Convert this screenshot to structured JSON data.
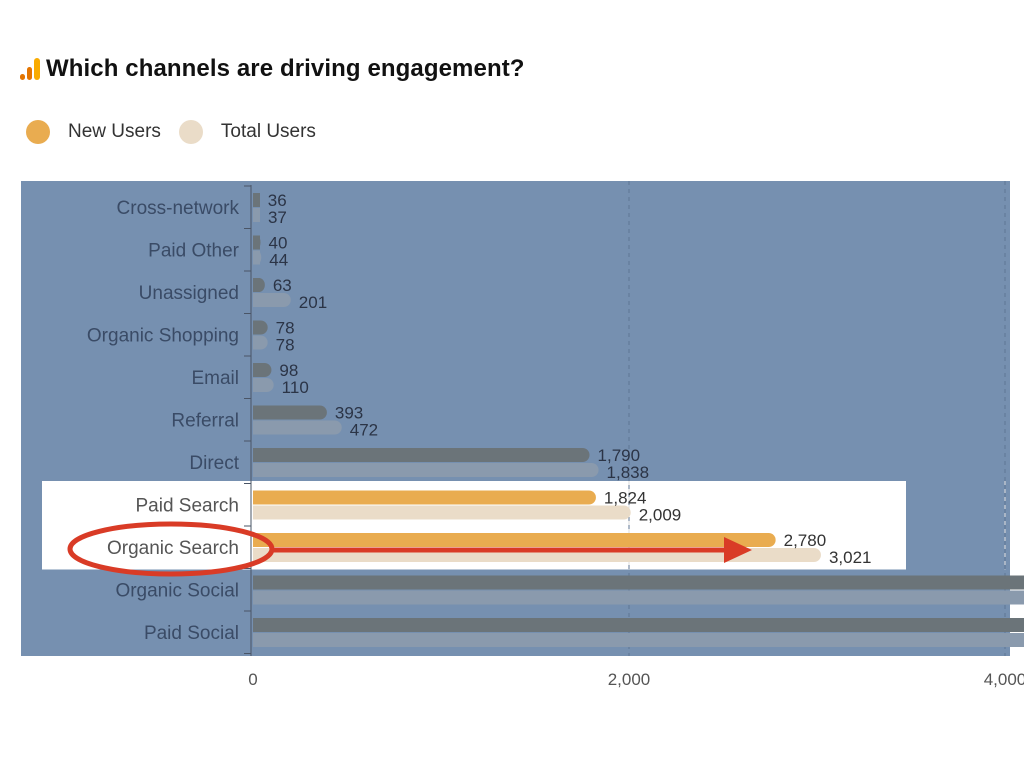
{
  "header": {
    "title": "Which channels are driving engagement?",
    "icon": "analytics-bars-icon"
  },
  "legend": {
    "items": [
      {
        "label": "New Users",
        "color": "#e9ac50"
      },
      {
        "label": "Total Users",
        "color": "#eadcc8"
      }
    ]
  },
  "colors": {
    "overlay": "#7690b0",
    "dimmed_new": "#6b7479",
    "dimmed_total": "#8a9aad",
    "highlight_bg": "#ffffff",
    "annotation": "#d93b26",
    "tick_label": "#555555",
    "category_label_dim": "#3a4b66"
  },
  "chart_data": {
    "type": "bar",
    "orientation": "horizontal",
    "categories": [
      "Cross-network",
      "Paid Other",
      "Unassigned",
      "Organic Shopping",
      "Email",
      "Referral",
      "Direct",
      "Paid Search",
      "Organic Search",
      "Organic Social",
      "Paid Social"
    ],
    "series": [
      {
        "name": "New Users",
        "values": [
          36,
          40,
          63,
          78,
          98,
          393,
          1790,
          1824,
          2780,
          4200,
          4200
        ]
      },
      {
        "name": "Total Users",
        "values": [
          37,
          44,
          201,
          78,
          110,
          472,
          1838,
          2009,
          3021,
          4200,
          4200
        ]
      }
    ],
    "value_labels": {
      "New Users": [
        "36",
        "40",
        "63",
        "78",
        "98",
        "393",
        "1,790",
        "1,824",
        "2,780",
        "",
        ""
      ],
      "Total Users": [
        "37",
        "44",
        "201",
        "78",
        "110",
        "472",
        "1,838",
        "2,009",
        "3,021",
        "",
        ""
      ]
    },
    "xlim": [
      0,
      4000
    ],
    "xticks": [
      {
        "value": 0,
        "label": "0"
      },
      {
        "value": 2000,
        "label": "2,000"
      },
      {
        "value": 4000,
        "label": "4,000"
      }
    ],
    "grid": "vertical-dashed",
    "highlighted_categories": [
      "Paid Search",
      "Organic Search"
    ],
    "circled_category": "Organic Search",
    "arrow_category": "Organic Search"
  }
}
